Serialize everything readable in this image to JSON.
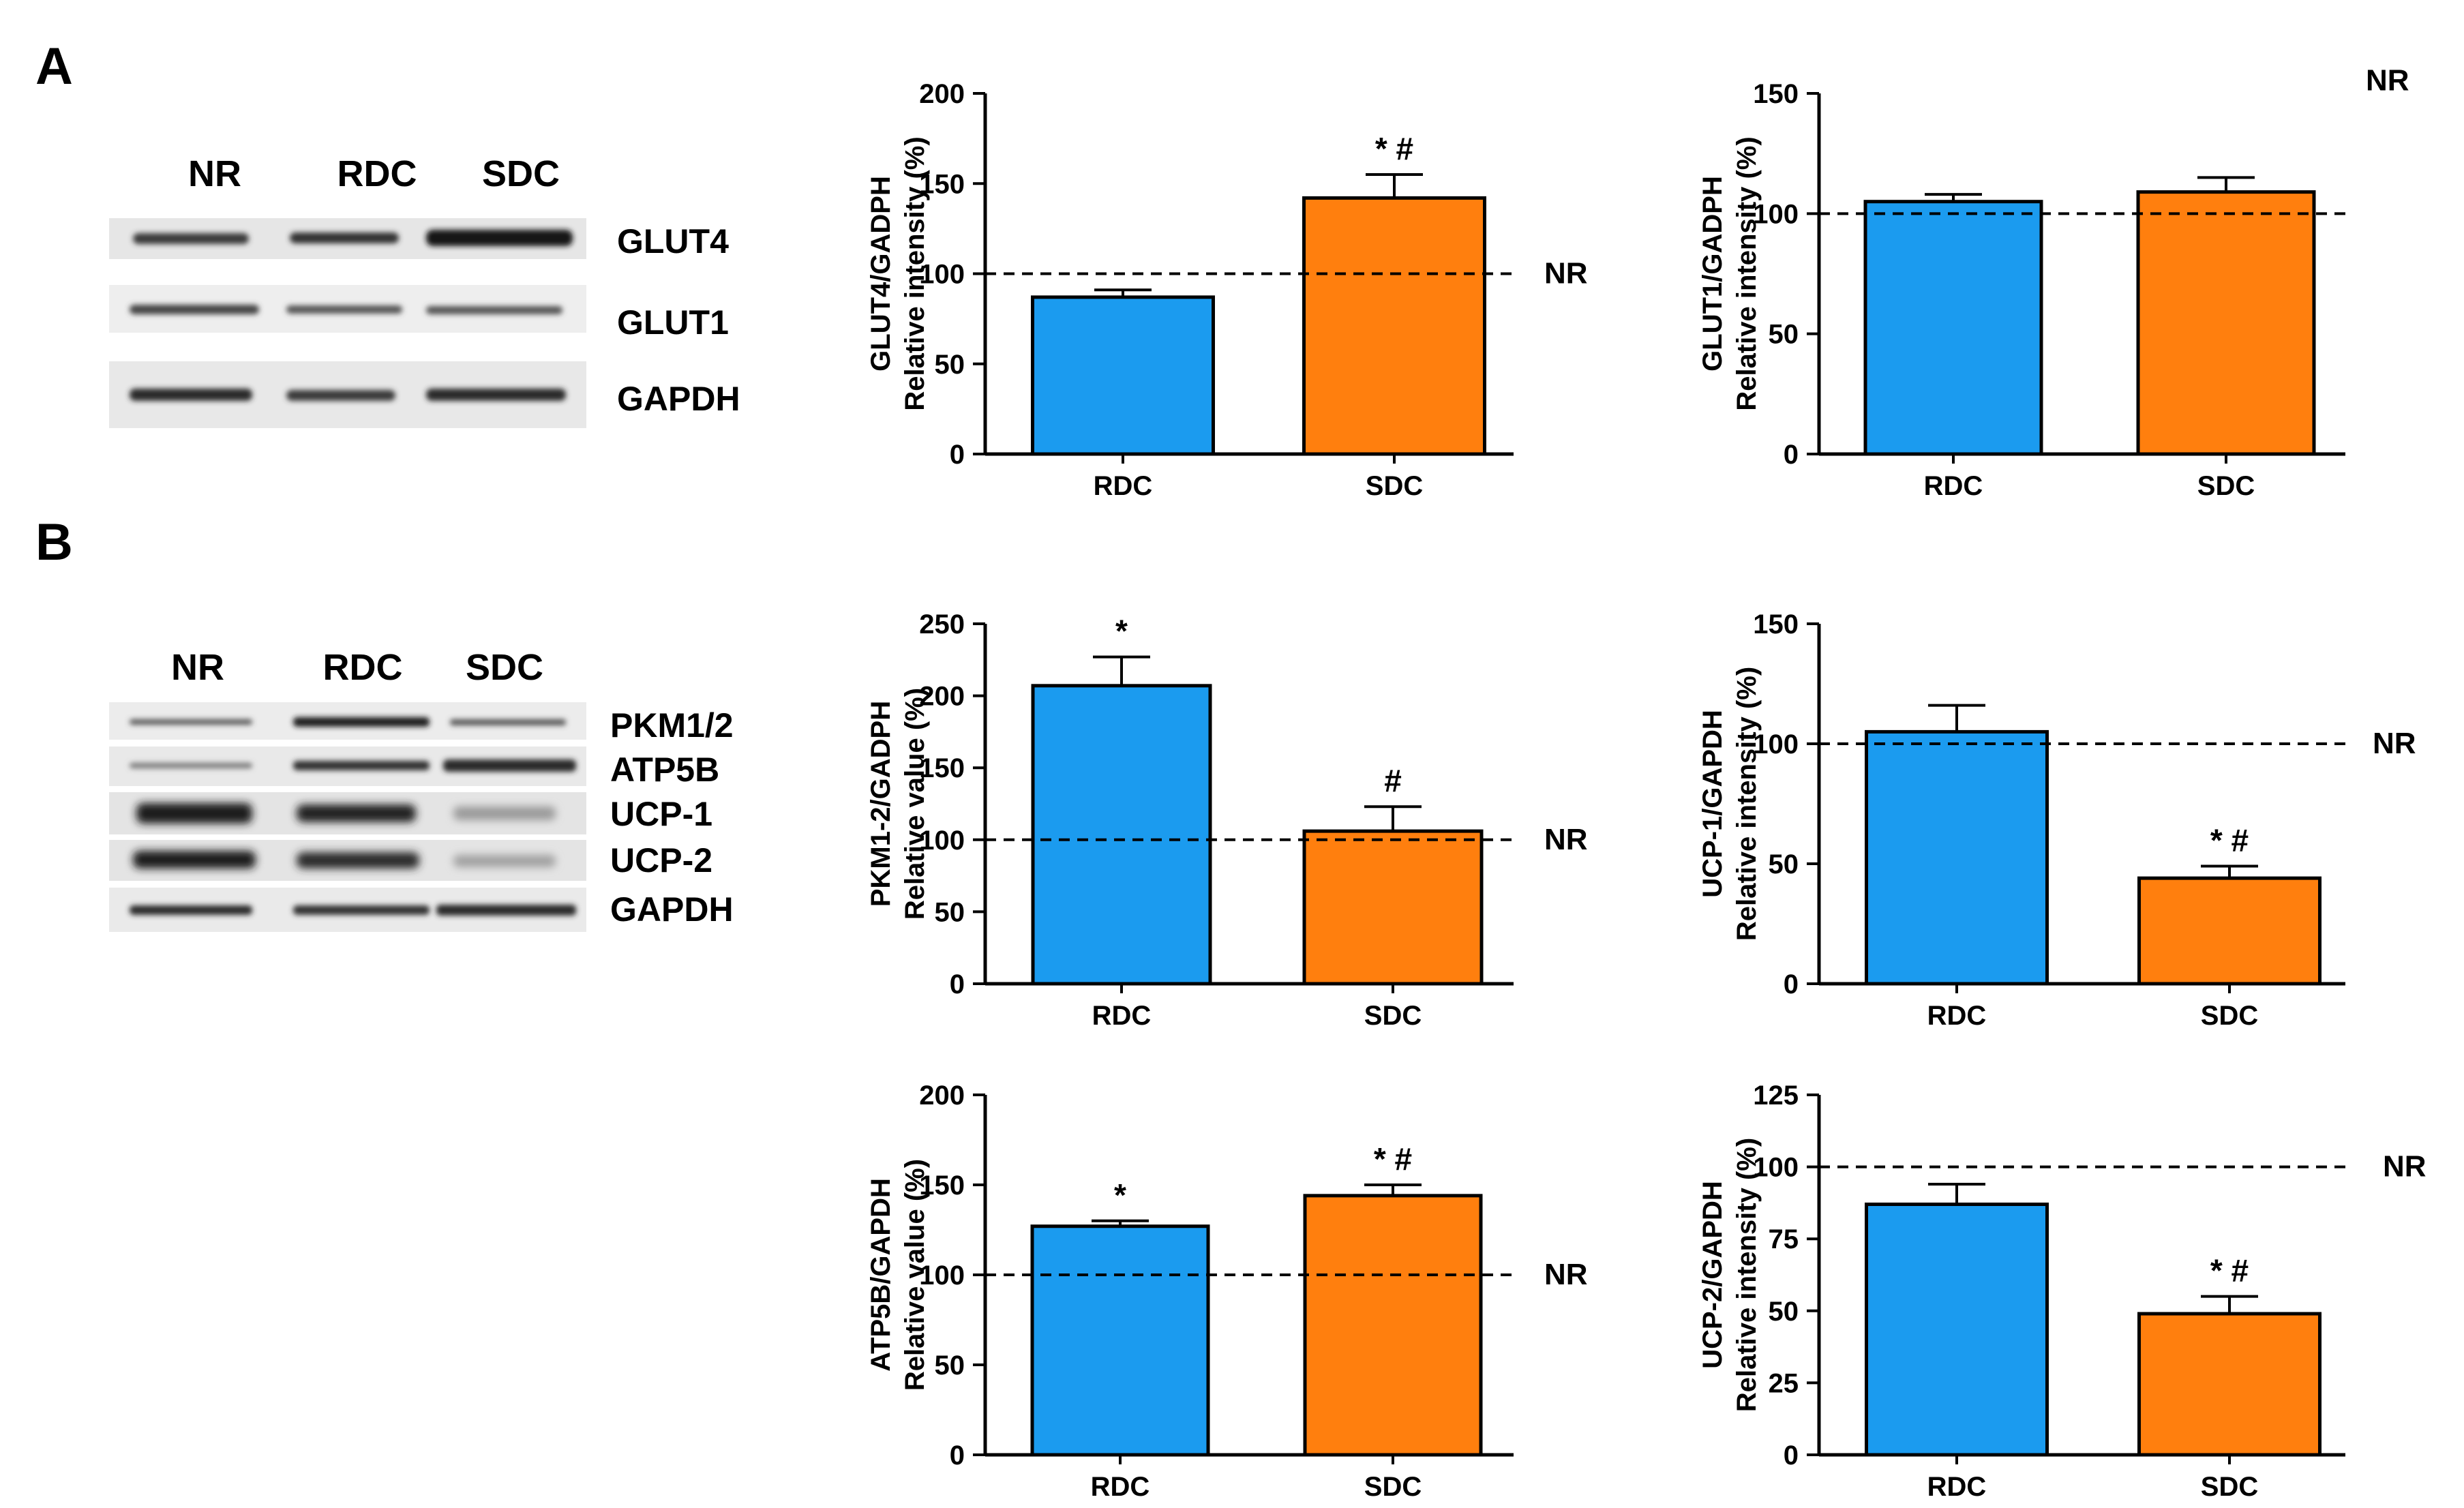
{
  "panels": [
    {
      "label": "A"
    },
    {
      "label": "B"
    }
  ],
  "blots": [
    {
      "columns": [
        "NR",
        "RDC",
        "SDC"
      ],
      "rows": [
        "GLUT4",
        "GLUT1",
        "GAPDH"
      ]
    },
    {
      "columns": [
        "NR",
        "RDC",
        "SDC"
      ],
      "rows": [
        "PKM1/2",
        "ATP5B",
        "UCP-1",
        "UCP-2",
        "GAPDH"
      ]
    }
  ],
  "colors": {
    "rdc": "#1b9bef",
    "sdc": "#ff7f0e",
    "axis": "#000000"
  },
  "chart_data": [
    {
      "type": "bar",
      "categories": [
        "RDC",
        "SDC"
      ],
      "values": [
        87,
        142
      ],
      "errors": [
        4,
        13
      ],
      "annotations": [
        "",
        "* #"
      ],
      "reference": {
        "value": 100,
        "label": "NR"
      },
      "ylabel": [
        "GLUT4/GADPH",
        "Relative intensity (%)"
      ],
      "ylim": [
        0,
        200
      ],
      "yticks": [
        0,
        50,
        100,
        150,
        200
      ]
    },
    {
      "type": "bar",
      "categories": [
        "RDC",
        "SDC"
      ],
      "values": [
        105,
        109
      ],
      "errors": [
        3,
        6
      ],
      "annotations": [
        "",
        ""
      ],
      "reference": {
        "value": 100,
        "label": "NR"
      },
      "ylabel": [
        "GLUT1/GADPH",
        "Relative intensity (%)"
      ],
      "ylim": [
        0,
        150
      ],
      "yticks": [
        0,
        50,
        100,
        150
      ]
    },
    {
      "type": "bar",
      "categories": [
        "RDC",
        "SDC"
      ],
      "values": [
        207,
        106
      ],
      "errors": [
        20,
        17
      ],
      "annotations": [
        "*",
        "#"
      ],
      "reference": {
        "value": 100,
        "label": "NR"
      },
      "ylabel": [
        "PKM1-2/GADPH",
        "Relative value (%)"
      ],
      "ylim": [
        0,
        250
      ],
      "yticks": [
        0,
        50,
        100,
        150,
        200,
        250
      ]
    },
    {
      "type": "bar",
      "categories": [
        "RDC",
        "SDC"
      ],
      "values": [
        105,
        44
      ],
      "errors": [
        11,
        5
      ],
      "annotations": [
        "",
        "* #"
      ],
      "reference": {
        "value": 100,
        "label": "NR"
      },
      "ylabel": [
        "UCP-1/GAPDH",
        "Relative intensity (%)"
      ],
      "ylim": [
        0,
        150
      ],
      "yticks": [
        0,
        50,
        100,
        150
      ]
    },
    {
      "type": "bar",
      "categories": [
        "RDC",
        "SDC"
      ],
      "values": [
        127,
        144
      ],
      "errors": [
        3,
        6
      ],
      "annotations": [
        "*",
        "* #"
      ],
      "reference": {
        "value": 100,
        "label": "NR"
      },
      "ylabel": [
        "ATP5B/GAPDH",
        "Relative value (%)"
      ],
      "ylim": [
        0,
        200
      ],
      "yticks": [
        0,
        50,
        100,
        150,
        200
      ]
    },
    {
      "type": "bar",
      "categories": [
        "RDC",
        "SDC"
      ],
      "values": [
        87,
        49
      ],
      "errors": [
        7,
        6
      ],
      "annotations": [
        "",
        "* #"
      ],
      "reference": {
        "value": 100,
        "label": "NR"
      },
      "ylabel": [
        "UCP-2/GAPDH",
        "Relative intensity (%)"
      ],
      "ylim": [
        0,
        125
      ],
      "yticks": [
        0,
        25,
        50,
        75,
        100,
        125
      ]
    }
  ]
}
